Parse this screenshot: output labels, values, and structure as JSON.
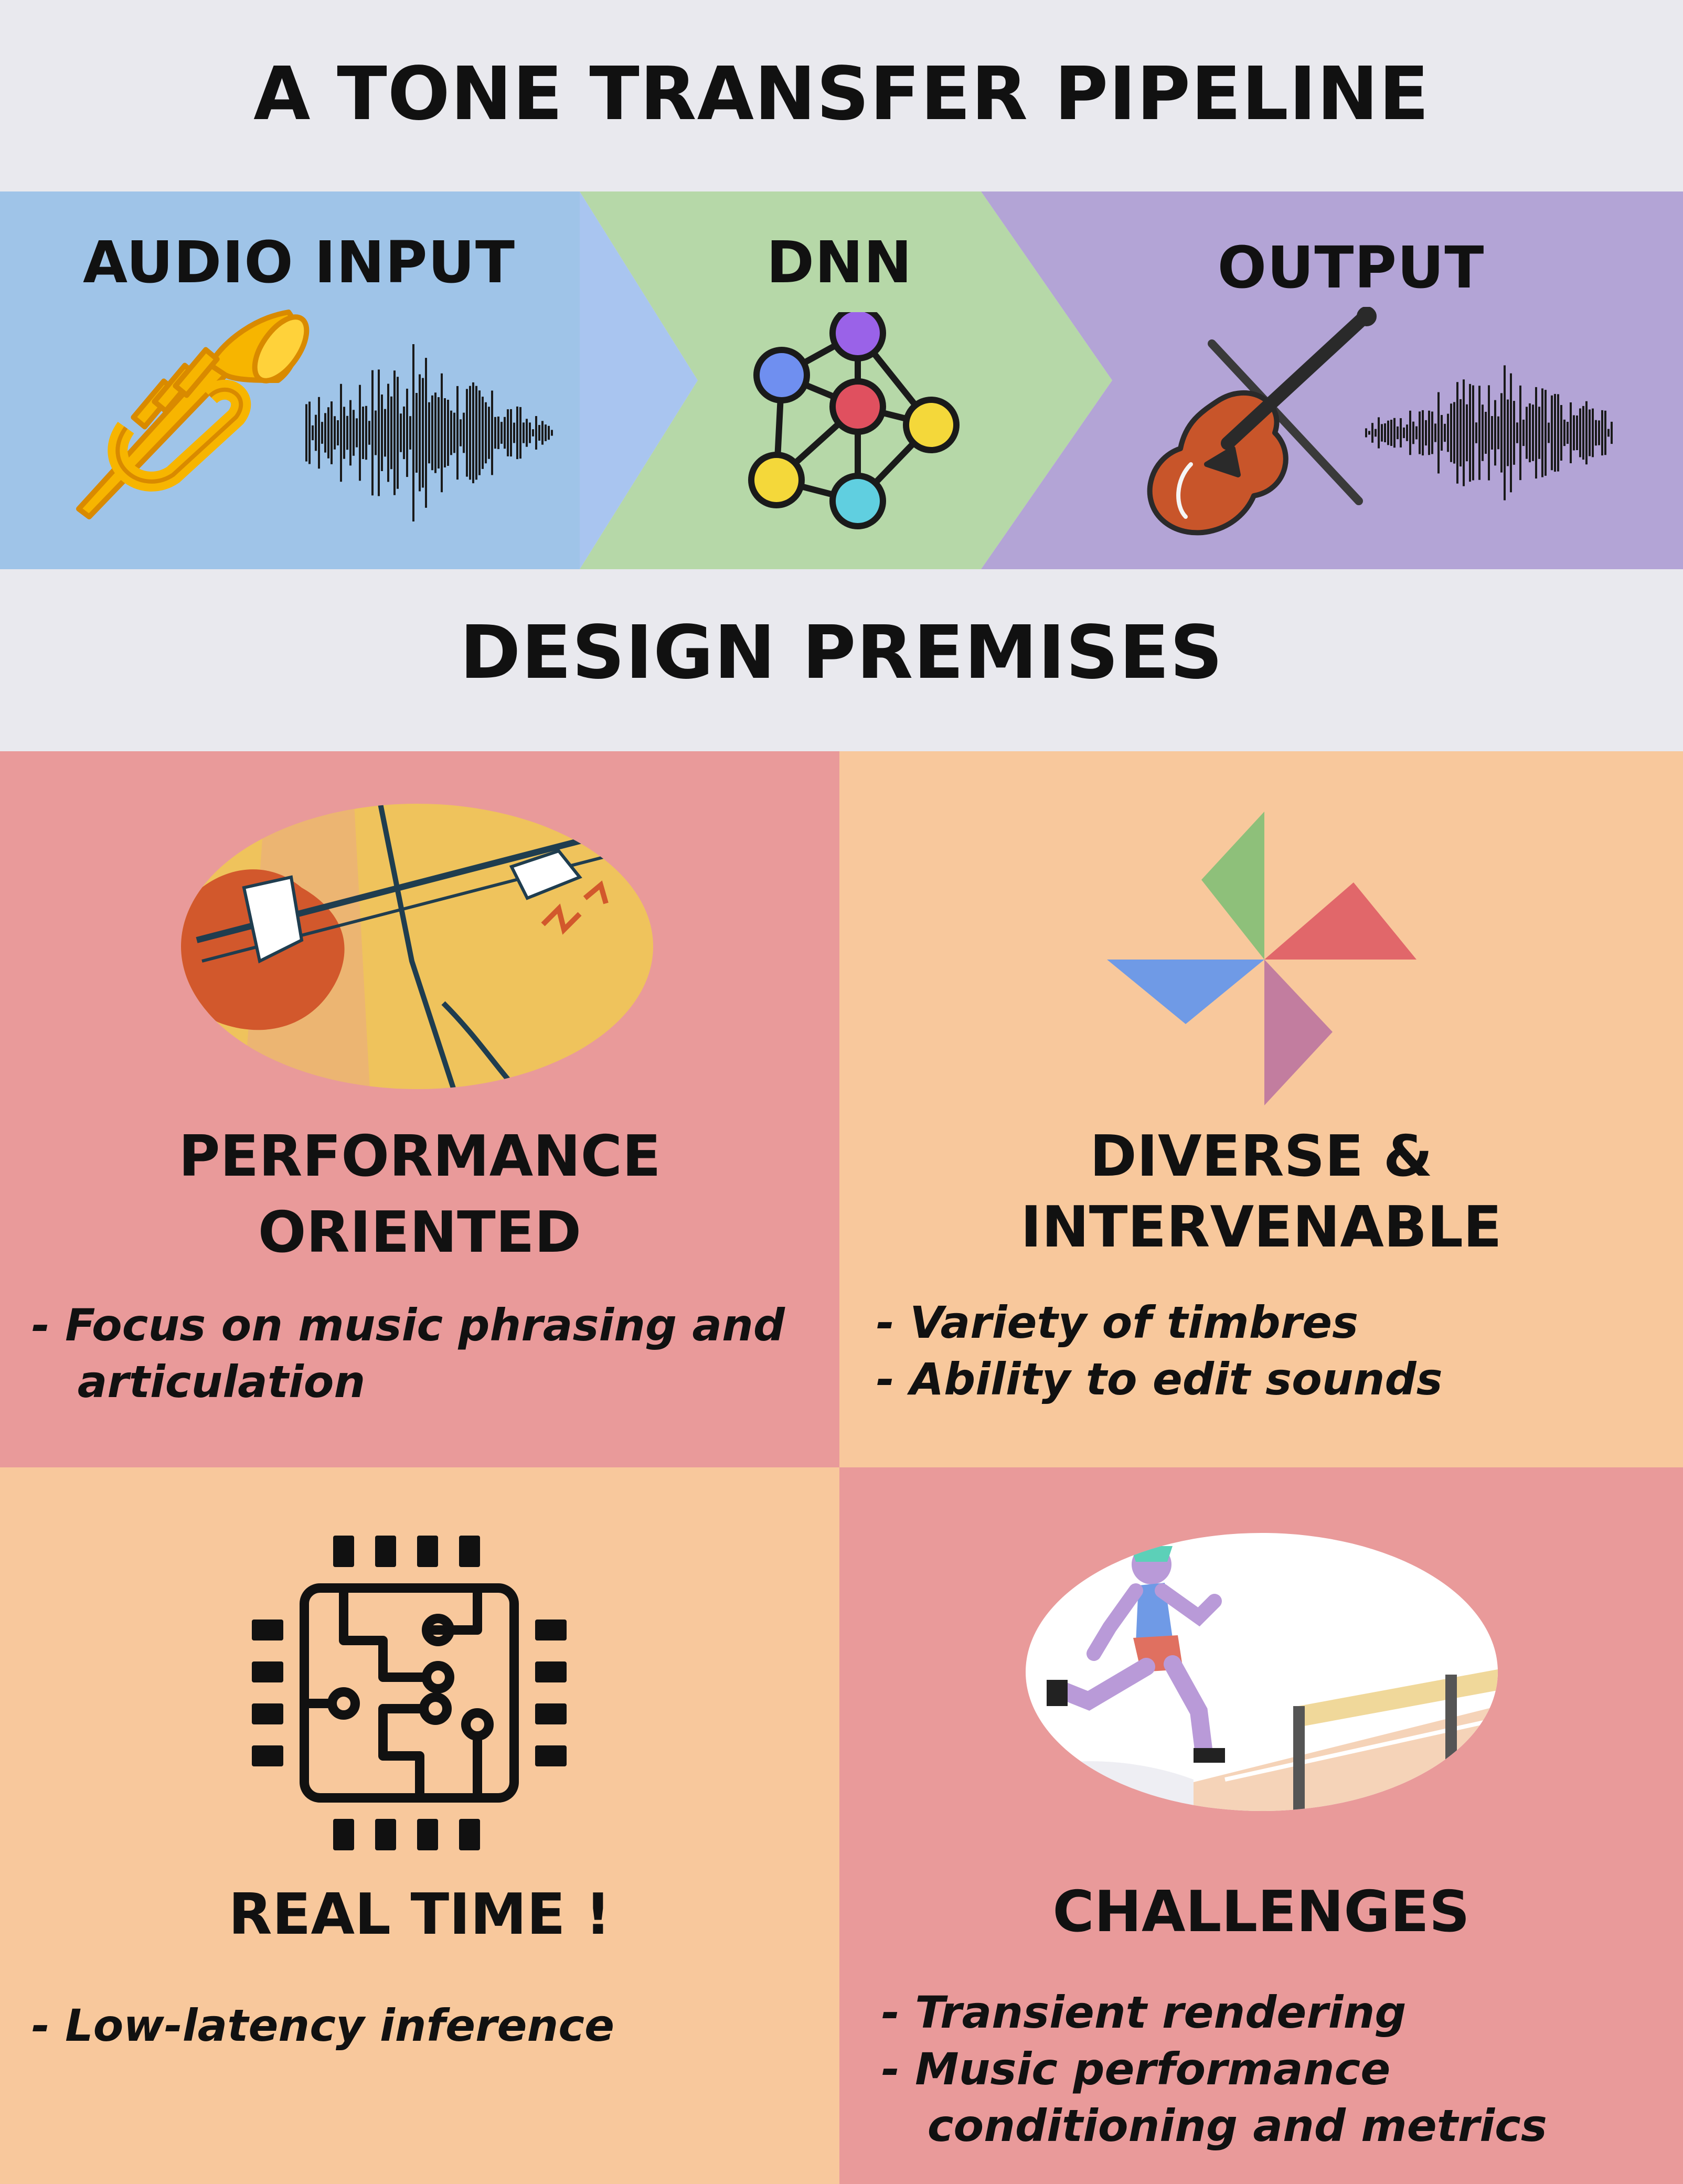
{
  "header": {
    "title": "A TONE TRANSFER PIPELINE"
  },
  "pipeline": {
    "stages": [
      {
        "label": "AUDIO INPUT",
        "icons": [
          "trumpet-icon",
          "waveform-icon"
        ]
      },
      {
        "label": "DNN",
        "icons": [
          "neural-network-icon"
        ]
      },
      {
        "label": "OUTPUT",
        "icons": [
          "violin-icon",
          "waveform-icon"
        ]
      }
    ],
    "colors": {
      "audio": "#9fc4e8",
      "dnn": "#b6d8a8",
      "output": "#b3a4d6"
    }
  },
  "premises": {
    "title": "DESIGN PREMISES",
    "cells": [
      {
        "title_lines": [
          "PERFORMANCE",
          "ORIENTED"
        ],
        "icon": "guitar-player-icon",
        "bullets": [
          "- Focus on music phrasing and",
          "   articulation"
        ],
        "color": "#e99a9a"
      },
      {
        "title_lines": [
          "DIVERSE &",
          "INTERVENABLE"
        ],
        "icon": "pinwheel-icon",
        "bullets": [
          "- Variety of timbres",
          "- Ability to edit sounds"
        ],
        "color": "#f8c89c"
      },
      {
        "title_lines": [
          "REAL TIME !"
        ],
        "icon": "chip-icon",
        "bullets": [
          "- Low-latency inference"
        ],
        "color": "#f8c89c"
      },
      {
        "title_lines": [
          "CHALLENGES"
        ],
        "icon": "hurdle-runner-icon",
        "bullets": [
          "- Transient rendering",
          "- Music performance",
          "   conditioning and metrics"
        ],
        "color": "#e99a9a"
      }
    ]
  }
}
